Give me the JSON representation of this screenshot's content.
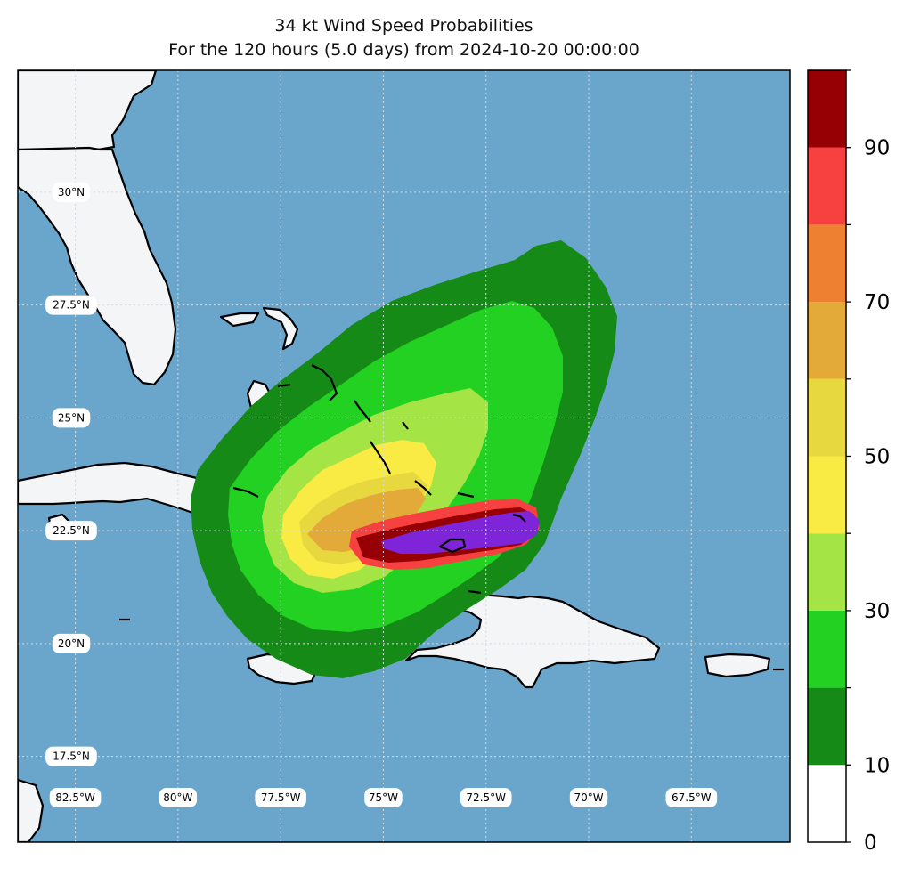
{
  "title": {
    "line1": "34 kt Wind Speed Probabilities",
    "line2": "For the 120 hours (5.0 days) from 2024-10-20 00:00:00"
  },
  "map": {
    "ocean_color": "#6aa6cb",
    "land_color": "#f3f5f7",
    "coast_color": "#000000",
    "grid_color": "#d5dbe0",
    "lat_labels": [
      {
        "value": 30.0,
        "label": "30°N"
      },
      {
        "value": 27.5,
        "label": "27.5°N"
      },
      {
        "value": 25.0,
        "label": "25°N"
      },
      {
        "value": 22.5,
        "label": "22.5°N"
      },
      {
        "value": 20.0,
        "label": "20°N"
      },
      {
        "value": 17.5,
        "label": "17.5°N"
      }
    ],
    "lon_labels": [
      {
        "value": -82.5,
        "label": "82.5°W"
      },
      {
        "value": -80.0,
        "label": "80°W"
      },
      {
        "value": -77.5,
        "label": "77.5°W"
      },
      {
        "value": -75.0,
        "label": "75°W"
      },
      {
        "value": -72.5,
        "label": "72.5°W"
      },
      {
        "value": -70.0,
        "label": "70°W"
      },
      {
        "value": -67.5,
        "label": "67.5°W"
      }
    ],
    "extent": {
      "lon_min": -83.9,
      "lon_max": -65.1,
      "lat_min": 15.6,
      "lat_max": 32.7
    }
  },
  "colorbar": {
    "levels": [
      0,
      10,
      20,
      30,
      40,
      50,
      60,
      70,
      80,
      90,
      100
    ],
    "colors": [
      "#ffffff",
      "#168a16",
      "#22d122",
      "#a4e444",
      "#faeb44",
      "#e8d840",
      "#e3aa3a",
      "#ee8032",
      "#f74040",
      "#960004",
      "#7f25d9"
    ],
    "tick_labels": [
      {
        "value": 0,
        "label": "0"
      },
      {
        "value": 10,
        "label": "10"
      },
      {
        "value": 30,
        "label": "30"
      },
      {
        "value": 50,
        "label": "50"
      },
      {
        "value": 70,
        "label": "70"
      },
      {
        "value": 90,
        "label": "90"
      }
    ]
  }
}
